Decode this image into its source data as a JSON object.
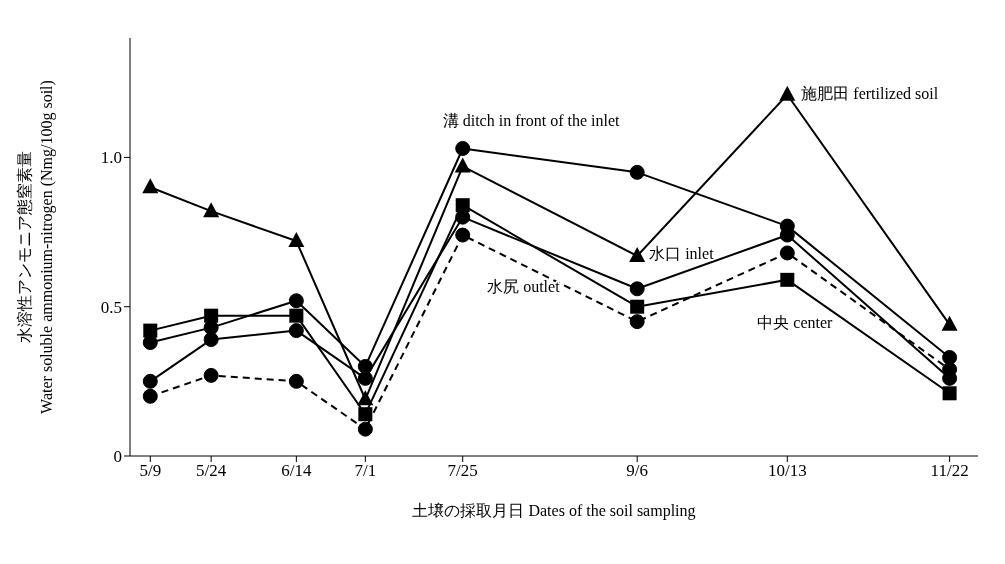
{
  "chart_data": {
    "type": "line",
    "xlabel": "土壌の採取月日 Dates of the soil sampling",
    "ylabel": "水溶性アンモニア態窒素量\nWater soluble ammonium-nitrogen (Nmg/100g soil)",
    "x": [
      "--05-09",
      "--05-24",
      "--06-14",
      "--07-01",
      "--07-25",
      "--09-06",
      "--10-13",
      "--11-22"
    ],
    "xlim": [
      "--05-04",
      "--11-29"
    ],
    "xticks": [
      {
        "value": "--05-09",
        "label": "5/9"
      },
      {
        "value": "--05-24",
        "label": "5/24"
      },
      {
        "value": "--06-14",
        "label": "6/14"
      },
      {
        "value": "--07-01",
        "label": "7/1"
      },
      {
        "value": "--07-25",
        "label": "7/25"
      },
      {
        "value": "--09-06",
        "label": "9/6"
      },
      {
        "value": "--10-13",
        "label": "10/13"
      },
      {
        "value": "--11-22",
        "label": "11/22"
      }
    ],
    "ylim": [
      0,
      1.4
    ],
    "yticks": [
      0,
      {
        "value": 0.5,
        "label": "0.5"
      },
      {
        "value": 1,
        "label": "1.0"
      }
    ],
    "series": [
      {
        "name": "施肥田 fertilized soil",
        "color": "#000000",
        "marker": "triangle",
        "line_style": "solid",
        "values": [
          0.9,
          0.82,
          0.72,
          0.19,
          0.97,
          0.67,
          1.21,
          0.44
        ]
      },
      {
        "name": "溝 ditch in front of the inlet",
        "color": "#000000",
        "marker": "circle",
        "line_style": "solid",
        "values": [
          0.38,
          0.43,
          0.52,
          0.3,
          1.03,
          0.95,
          0.77,
          0.33
        ]
      },
      {
        "name": "水口 inlet",
        "color": "#000000",
        "marker": "circle",
        "line_style": "solid",
        "values": [
          0.25,
          0.39,
          0.42,
          0.26,
          0.8,
          0.56,
          0.74,
          0.26
        ]
      },
      {
        "name": "水尻 outlet",
        "color": "#000000",
        "marker": "circle",
        "line_style": "dashed",
        "values": [
          0.2,
          0.27,
          0.25,
          0.09,
          0.74,
          0.45,
          0.68,
          0.29
        ]
      },
      {
        "name": "中央 center",
        "color": "#000000",
        "marker": "square",
        "line_style": "solid",
        "values": [
          0.42,
          0.47,
          0.47,
          0.14,
          0.84,
          0.5,
          0.59,
          0.21
        ]
      }
    ]
  }
}
